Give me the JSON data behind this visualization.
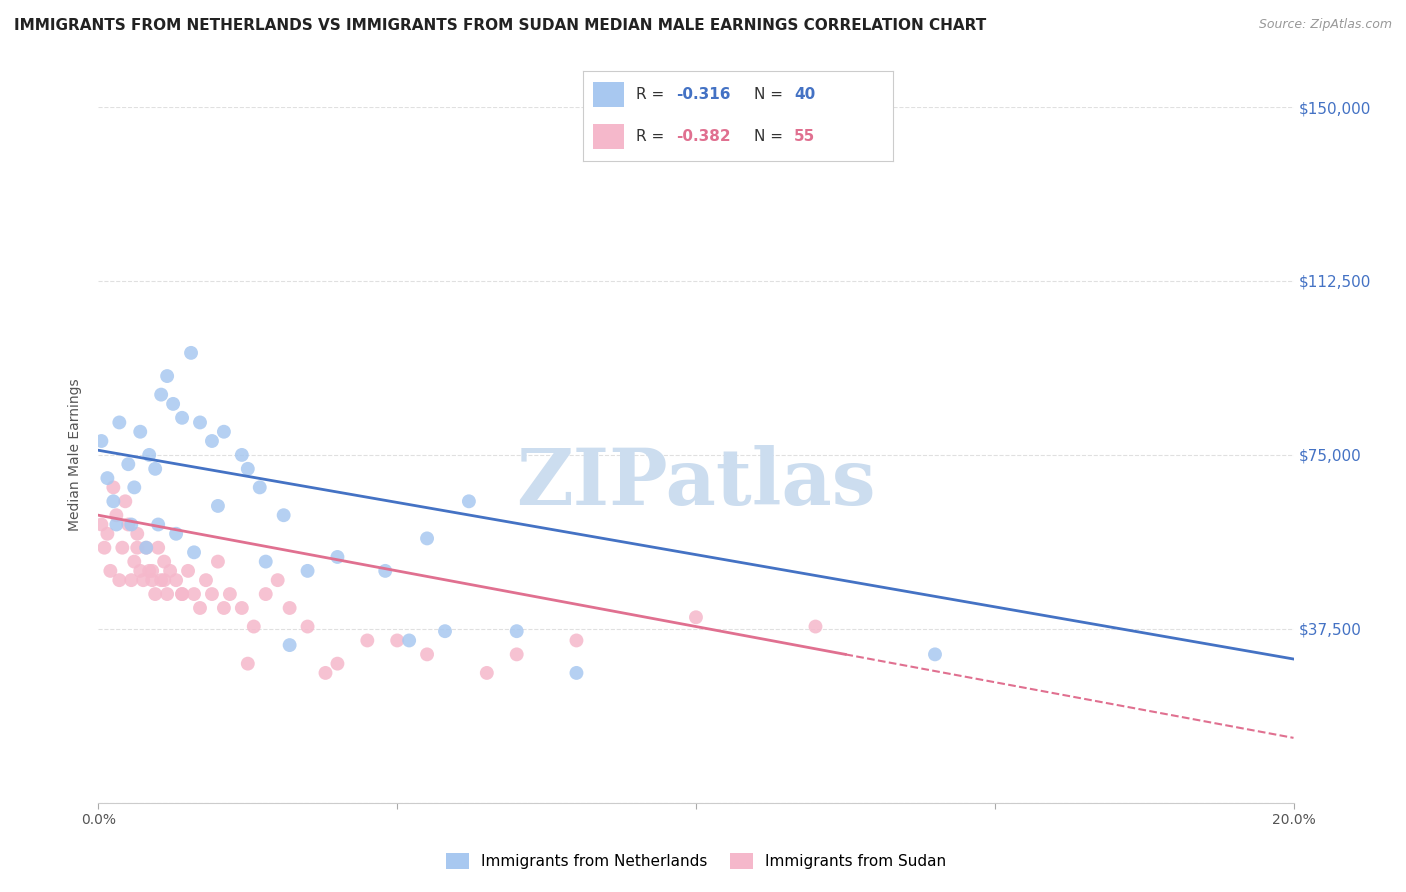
{
  "title": "IMMIGRANTS FROM NETHERLANDS VS IMMIGRANTS FROM SUDAN MEDIAN MALE EARNINGS CORRELATION CHART",
  "source": "Source: ZipAtlas.com",
  "ylabel": "Median Male Earnings",
  "y_ticks": [
    0,
    37500,
    75000,
    112500,
    150000
  ],
  "y_tick_labels": [
    "",
    "$37,500",
    "$75,000",
    "$112,500",
    "$150,000"
  ],
  "x_min": 0.0,
  "x_max": 20.0,
  "y_min": 0,
  "y_max": 150000,
  "netherlands_color": "#a8c8f0",
  "sudan_color": "#f5b8cb",
  "netherlands_line_color": "#4472c4",
  "sudan_line_color": "#e07090",
  "netherlands_R": -0.316,
  "netherlands_N": 40,
  "sudan_R": -0.382,
  "sudan_N": 55,
  "nl_line_x0": 0,
  "nl_line_y0": 76000,
  "nl_line_x1": 20,
  "nl_line_y1": 31000,
  "sd_line_x0": 0,
  "sd_line_y0": 62000,
  "sd_line_x1": 20,
  "sd_line_y1": 14000,
  "sd_solid_end": 12.5,
  "netherlands_scatter_x": [
    0.05,
    0.15,
    0.25,
    0.35,
    0.5,
    0.6,
    0.7,
    0.85,
    0.95,
    1.05,
    1.15,
    1.25,
    1.4,
    1.55,
    1.7,
    1.9,
    2.1,
    2.4,
    2.7,
    3.1,
    3.5,
    4.0,
    4.8,
    5.5,
    6.2,
    7.0,
    0.3,
    0.55,
    0.8,
    1.0,
    1.3,
    1.6,
    2.0,
    2.8,
    3.2,
    5.2,
    8.0,
    14.0,
    5.8,
    2.5
  ],
  "netherlands_scatter_y": [
    78000,
    70000,
    65000,
    82000,
    73000,
    68000,
    80000,
    75000,
    72000,
    88000,
    92000,
    86000,
    83000,
    97000,
    82000,
    78000,
    80000,
    75000,
    68000,
    62000,
    50000,
    53000,
    50000,
    57000,
    65000,
    37000,
    60000,
    60000,
    55000,
    60000,
    58000,
    54000,
    64000,
    52000,
    34000,
    35000,
    28000,
    32000,
    37000,
    72000
  ],
  "sudan_scatter_x": [
    0.05,
    0.1,
    0.15,
    0.2,
    0.3,
    0.35,
    0.4,
    0.5,
    0.55,
    0.6,
    0.65,
    0.7,
    0.75,
    0.8,
    0.85,
    0.9,
    0.95,
    1.0,
    1.05,
    1.1,
    1.15,
    1.2,
    1.3,
    1.4,
    1.5,
    1.6,
    1.7,
    1.8,
    1.9,
    2.0,
    2.1,
    2.2,
    2.4,
    2.6,
    2.8,
    3.0,
    3.2,
    3.5,
    4.0,
    4.5,
    5.0,
    5.5,
    6.5,
    7.0,
    8.0,
    10.0,
    12.0,
    0.25,
    0.45,
    0.65,
    0.9,
    1.1,
    1.4,
    2.5,
    3.8
  ],
  "sudan_scatter_y": [
    60000,
    55000,
    58000,
    50000,
    62000,
    48000,
    55000,
    60000,
    48000,
    52000,
    58000,
    50000,
    48000,
    55000,
    50000,
    48000,
    45000,
    55000,
    48000,
    52000,
    45000,
    50000,
    48000,
    45000,
    50000,
    45000,
    42000,
    48000,
    45000,
    52000,
    42000,
    45000,
    42000,
    38000,
    45000,
    48000,
    42000,
    38000,
    30000,
    35000,
    35000,
    32000,
    28000,
    32000,
    35000,
    40000,
    38000,
    68000,
    65000,
    55000,
    50000,
    48000,
    45000,
    30000,
    28000
  ],
  "watermark_text": "ZIPatlas",
  "watermark_color": "#ccddef",
  "background_color": "#ffffff",
  "grid_color": "#e0e0e0",
  "title_color": "#222222",
  "axis_label_color": "#555555",
  "right_axis_color": "#4472c4",
  "legend_label_color": "#333333"
}
